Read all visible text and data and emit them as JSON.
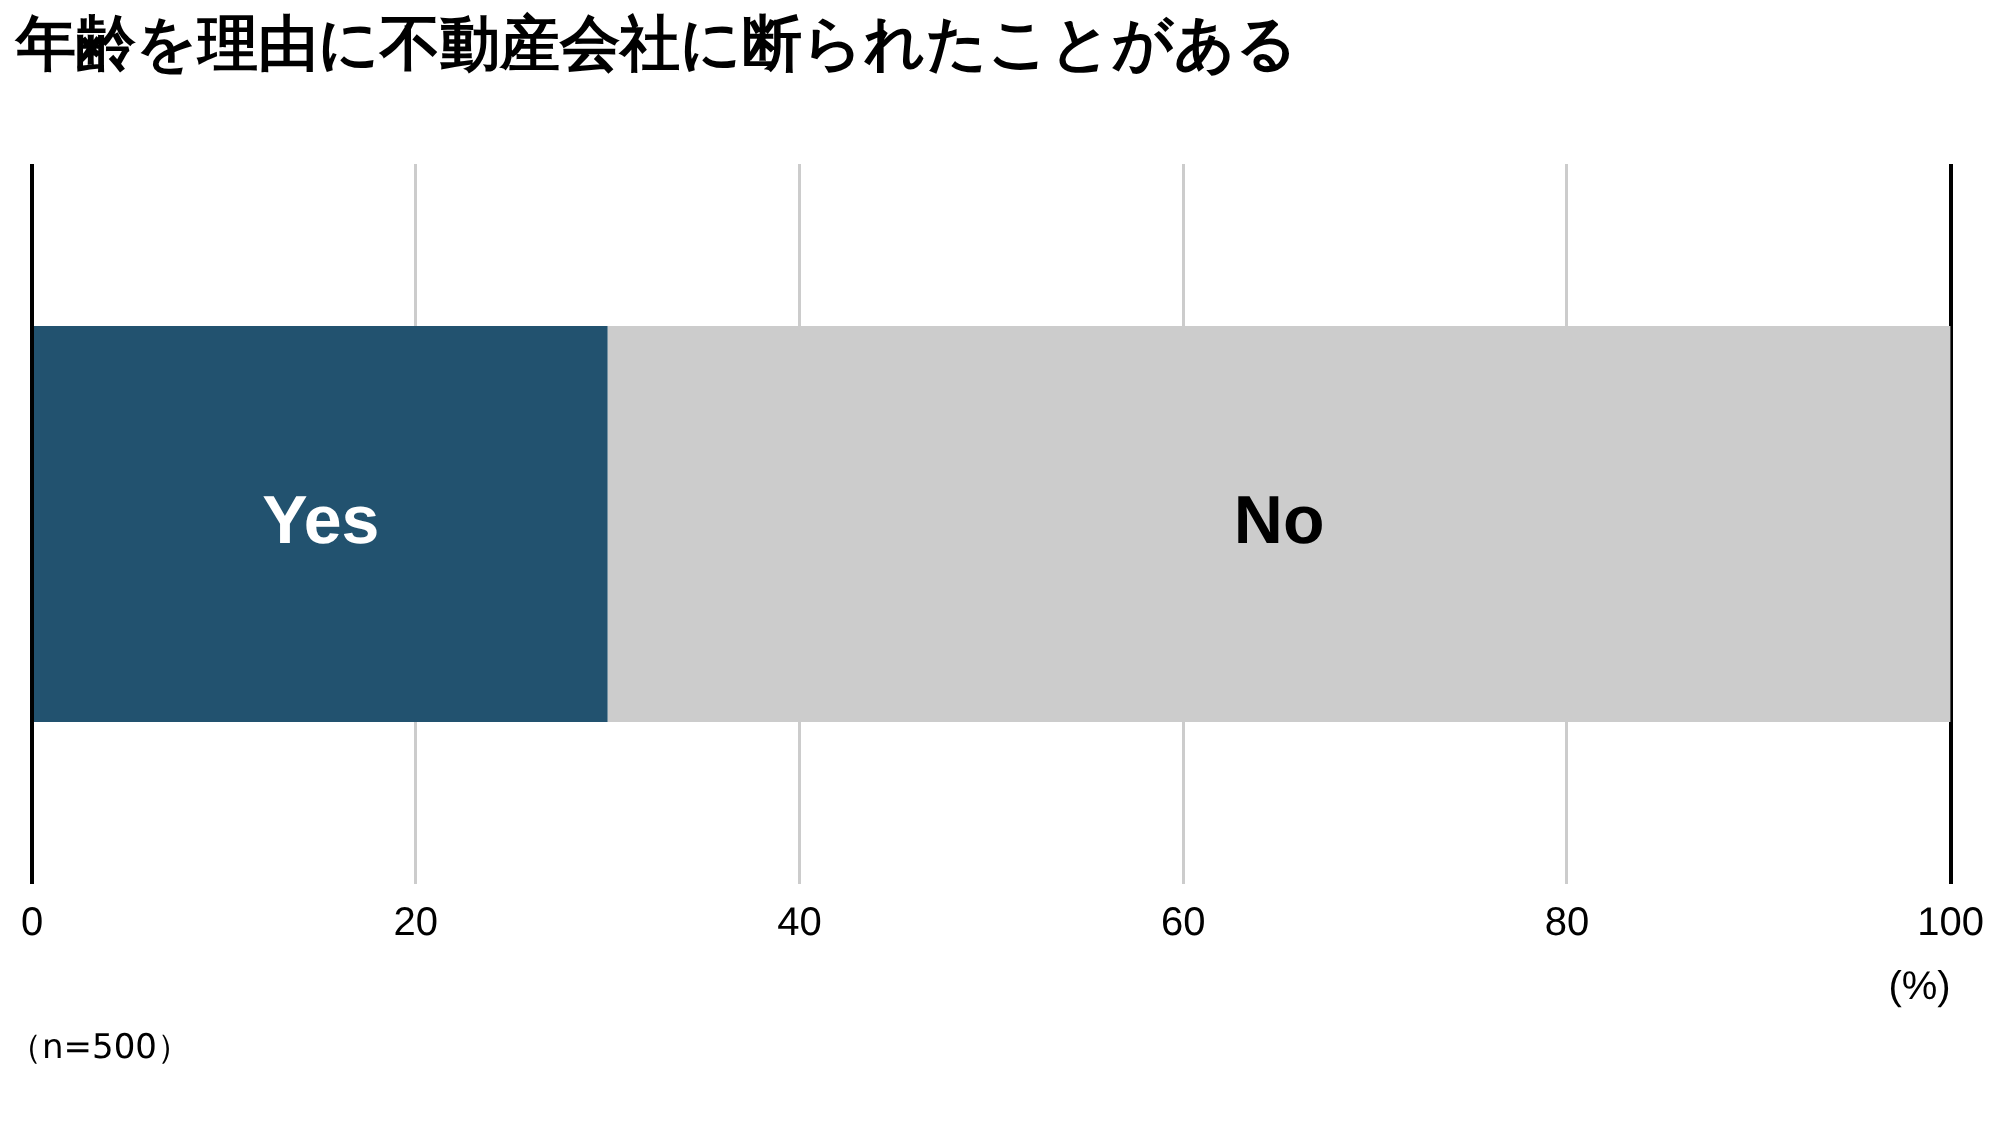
{
  "chart_data": {
    "type": "bar",
    "title": "年齢を理由に不動産会社に断られたことがある",
    "orientation": "horizontal",
    "stacked": true,
    "categories": [
      null
    ],
    "series": [
      {
        "name": "Yes",
        "color": "#22526f",
        "values": [
          30
        ]
      },
      {
        "name": "No",
        "color": "#cccccc",
        "values": [
          70
        ]
      }
    ],
    "xlim": [
      0,
      100
    ],
    "xticks": [
      0,
      20,
      40,
      60,
      80,
      100
    ],
    "xlabel": "(%)",
    "grid": "x",
    "legend": false,
    "annotations": [
      "（n=500）"
    ]
  }
}
